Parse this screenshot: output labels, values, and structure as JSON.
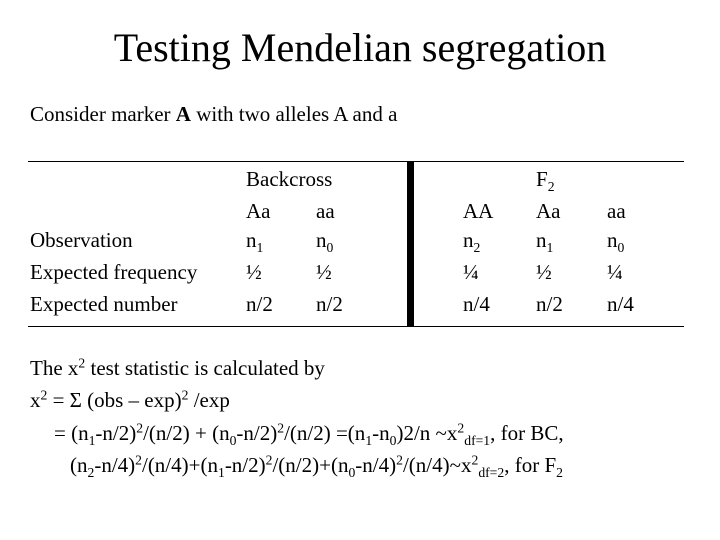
{
  "slide": {
    "title": "Testing Mendelian segregation",
    "intro_before": "Consider marker ",
    "intro_bold": "A",
    "intro_after": " with two alleles A and a"
  },
  "table": {
    "backcross_header": "Backcross",
    "f2_header_main": "F",
    "f2_header_sub": "2",
    "bc_genotypes": [
      "Aa",
      "aa"
    ],
    "f2_genotypes": [
      "AA",
      "Aa",
      "aa"
    ],
    "row_labels": [
      "Observation",
      "Expected frequency",
      "Expected number"
    ],
    "observation": {
      "bc": [
        {
          "main": "n",
          "sub": "1"
        },
        {
          "main": "n",
          "sub": "0"
        }
      ],
      "f2": [
        {
          "main": "n",
          "sub": "2"
        },
        {
          "main": "n",
          "sub": "1"
        },
        {
          "main": "n",
          "sub": "0"
        }
      ]
    },
    "expected_frequency": {
      "bc": [
        "½",
        "½"
      ],
      "f2": [
        "¼",
        "½",
        "¼"
      ]
    },
    "expected_number": {
      "bc": [
        "n/2",
        "n/2"
      ],
      "f2": [
        "n/4",
        "n/2",
        "n/4"
      ]
    }
  },
  "formulas": {
    "line1": [
      "The x",
      "2",
      " test statistic is calculated by"
    ],
    "line2": [
      "x",
      "2",
      " = Σ (obs – exp)",
      "2",
      " /exp"
    ],
    "line3": [
      "= (n",
      "1",
      "-n/2)",
      "2",
      "/(n/2) + (n",
      "0",
      "-n/2)",
      "2",
      "/(n/2) =(n",
      "1",
      "-n",
      "0",
      ")2/n ~x",
      "2",
      "df=1",
      ", for BC,"
    ],
    "line4": [
      "(n",
      "2",
      "-n/4)",
      "2",
      "/(n/4)+(n",
      "1",
      "-n/2)",
      "2",
      "/(n/2)+(n",
      "0",
      "-n/4)",
      "2",
      "/(n/4)~x",
      "2",
      "df=2",
      ", for F",
      "2"
    ]
  }
}
